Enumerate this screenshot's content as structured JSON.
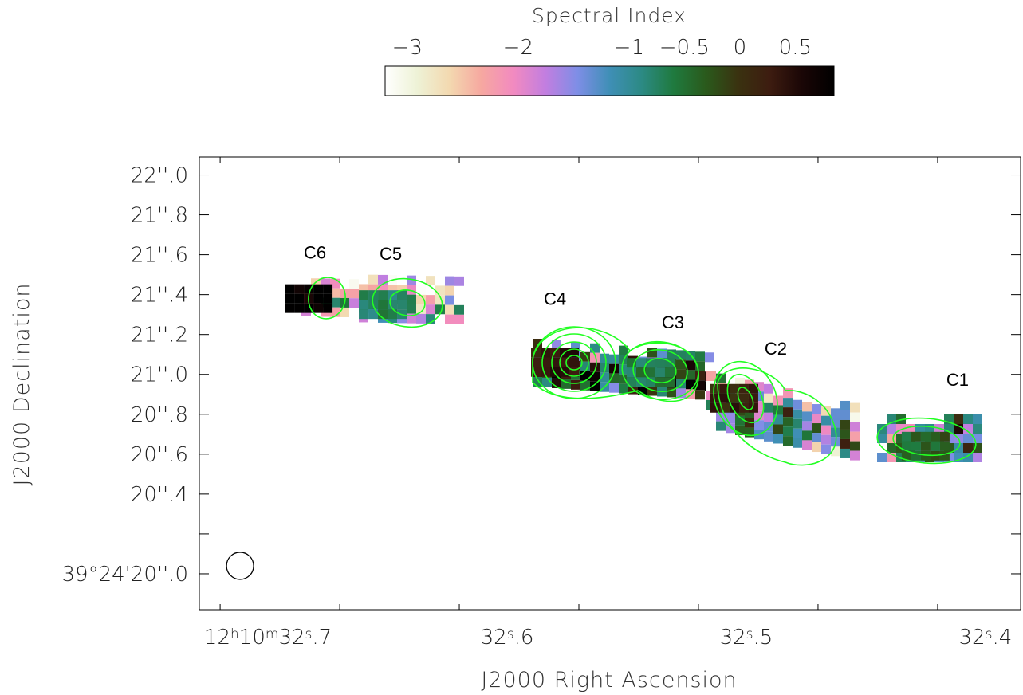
{
  "chart_data": {
    "type": "heatmap",
    "colorbar": {
      "title": "Spectral Index",
      "ticks": [
        {
          "value": -3,
          "label": "−3"
        },
        {
          "value": -2,
          "label": "−2"
        },
        {
          "value": -1,
          "label": "−1"
        },
        {
          "value": -0.5,
          "label": "−0.5"
        },
        {
          "value": 0,
          "label": "0"
        },
        {
          "value": 0.5,
          "label": "0.5"
        }
      ],
      "range": [
        -3.2,
        0.85
      ],
      "colormap": [
        "#ffffff",
        "#eef2d6",
        "#f3d9b0",
        "#f6a8a0",
        "#f28ac0",
        "#c27ee0",
        "#7e8ee6",
        "#3f8fb6",
        "#2c8a84",
        "#1f7a3e",
        "#2a5a1c",
        "#3a3210",
        "#3d1c10",
        "#1a0606",
        "#000000"
      ]
    },
    "xlabel": "J2000 Right Ascension",
    "ylabel": "J2000 Declination",
    "x_ticks": [
      {
        "value": 32.7,
        "label_hms": [
          "12",
          "h",
          "10",
          "m",
          "32",
          "s",
          ".7"
        ]
      },
      {
        "value": 32.6,
        "label_sec": [
          "32",
          "s",
          ".6"
        ]
      },
      {
        "value": 32.5,
        "label_sec": [
          "32",
          "s",
          ".5"
        ]
      },
      {
        "value": 32.4,
        "label_sec": [
          "32",
          "s",
          ".4"
        ]
      }
    ],
    "x_range_seconds": [
      32.7287,
      32.3853
    ],
    "y_ticks": [
      {
        "value": 22.0,
        "label": "22''.0"
      },
      {
        "value": 21.8,
        "label": "21''.8"
      },
      {
        "value": 21.6,
        "label": "21''.6"
      },
      {
        "value": 21.4,
        "label": "21''.4"
      },
      {
        "value": 21.2,
        "label": "21''.2"
      },
      {
        "value": 21.0,
        "label": "21''.0"
      },
      {
        "value": 20.8,
        "label": "20''.8"
      },
      {
        "value": 20.6,
        "label": "20''.6"
      },
      {
        "value": 20.4,
        "label": "20''.4"
      },
      {
        "value": 20.2,
        "label": ""
      },
      {
        "value": 20.0,
        "label": "39°24'20''.0"
      }
    ],
    "y_range_arcsec": [
      19.82,
      22.09
    ],
    "components": [
      {
        "name": "C6",
        "ra_s": 32.683,
        "dec": 21.38,
        "index": 0.8
      },
      {
        "name": "C5",
        "ra_s": 32.652,
        "dec": 21.35,
        "index": -0.7
      },
      {
        "name": "C4",
        "ra_s": 32.58,
        "dec": 21.06,
        "index": 0.3
      },
      {
        "name": "C3",
        "ra_s": 32.54,
        "dec": 21.01,
        "index": -0.6
      },
      {
        "name": "C2",
        "ra_s": 32.505,
        "dec": 20.88,
        "index": 0.2
      },
      {
        "name": "C1",
        "ra_s": 32.425,
        "dec": 20.64,
        "index": -0.4
      }
    ],
    "contour_color": "#22ff22",
    "beam": {
      "ra_s": 32.7,
      "dec": 20.04
    }
  }
}
